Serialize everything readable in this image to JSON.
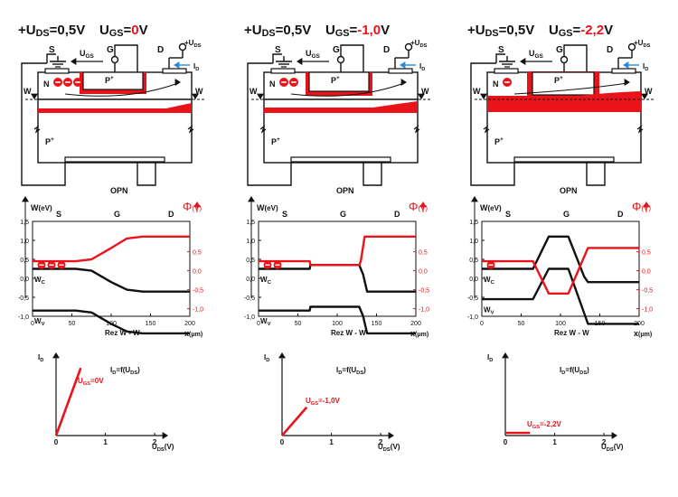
{
  "colors": {
    "red": "#e8141a",
    "black": "#111111",
    "blue": "#2a8ad8",
    "gray": "#9a9a9a"
  },
  "common": {
    "uds_value": "+U",
    "uds_sub": "DS",
    "uds_rest": "=0,5V",
    "ugs_label": "U",
    "ugs_sub": "GS",
    "ugs_eq": "=",
    "unit_v": "V",
    "source": "S",
    "gate": "G",
    "drain": "D",
    "ugs_arrow": "U",
    "ugs_arrow_sub": "GS",
    "plus_uds": "+U",
    "plus_uds_sub": "DS",
    "id_label": "I",
    "id_sub": "D",
    "n_region": "N",
    "p_plus_top": "P",
    "p_plus_bottom": "P",
    "plus_sign": "+",
    "w_left": "W",
    "w_right": "W",
    "opn": "OPN",
    "col_s": "S",
    "col_g": "G",
    "col_d": "D",
    "w_axis": "W",
    "w_unit": "(eV)",
    "phi_symbol": "Φ",
    "phi_unit": "(V)",
    "wc": "W",
    "wc_sub": "C",
    "wv": "W",
    "wv_sub": "V",
    "x_label": "Rez W - W",
    "x_unit_label": "x",
    "x_unit": "(μm)",
    "left_ticks": [
      "1,5",
      "1,0",
      "0,5",
      "0,0",
      "-0,5",
      "-1,0"
    ],
    "right_ticks": [
      "0,5",
      "0,0",
      "-0,5",
      "-1,0"
    ],
    "x_ticks": [
      "0",
      "50",
      "100",
      "150",
      "200"
    ],
    "id_axis": "I",
    "id_axis_sub": "D",
    "id_func": "I",
    "id_func_sub": "D",
    "id_func_rest": "=f(U",
    "id_func_sub2": "DS",
    "id_func_end": ")",
    "uds_axis": "U",
    "uds_axis_sub": "DS",
    "uds_axis_unit": "(V)",
    "iv_ticks": [
      "0",
      "1",
      "2"
    ]
  },
  "panels": [
    {
      "ugs_value": "0",
      "electrons": 3,
      "curve_label": "U",
      "curve_label_sub": "GS",
      "curve_label_rest": "=0V"
    },
    {
      "ugs_value": "-1,0",
      "electrons": 2,
      "curve_label": "U",
      "curve_label_sub": "GS",
      "curve_label_rest": "=-1,0V"
    },
    {
      "ugs_value": "-2,2",
      "electrons": 1,
      "curve_label": "U",
      "curve_label_sub": "GS",
      "curve_label_rest": "=-2,2V"
    }
  ]
}
